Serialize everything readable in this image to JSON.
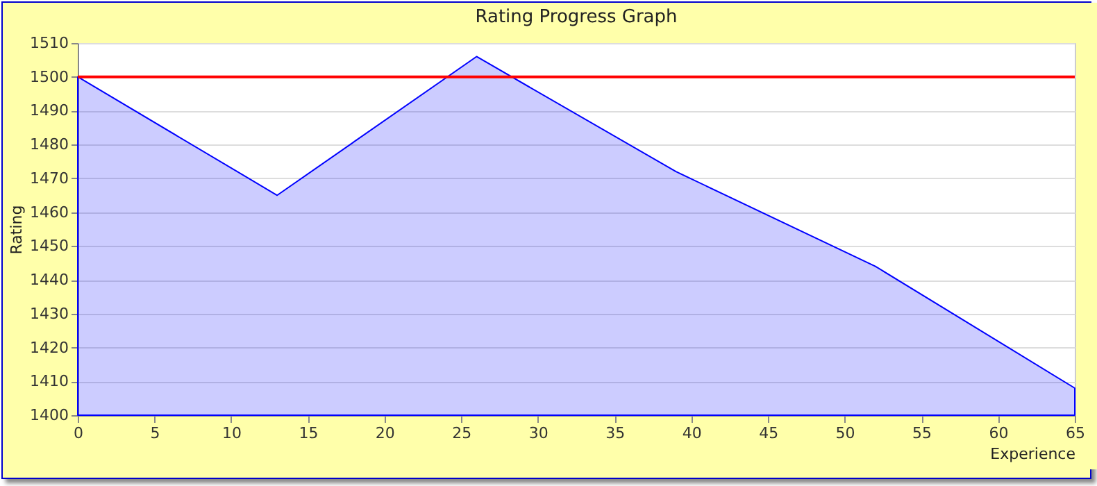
{
  "chart_data": {
    "type": "area",
    "title": "Rating Progress Graph",
    "xlabel": "Experience",
    "ylabel": "Rating",
    "x": [
      0,
      13,
      26,
      39,
      52,
      65
    ],
    "series": [
      {
        "color": "#0000ff",
        "values": [
          1500,
          1465,
          1506,
          1472,
          1444,
          1408
        ]
      }
    ],
    "xlim": [
      0,
      65
    ],
    "xticks": [
      0,
      5,
      10,
      15,
      20,
      25,
      30,
      35,
      40,
      45,
      50,
      55,
      60,
      65
    ],
    "ylim": [
      1400,
      1510
    ],
    "yticks": [
      1400,
      1410,
      1420,
      1430,
      1440,
      1450,
      1460,
      1470,
      1480,
      1490,
      1500,
      1510
    ],
    "ref_lines": [
      {
        "axis": "y",
        "value": 1500,
        "color": "#ff0000"
      }
    ],
    "grid": "y"
  }
}
